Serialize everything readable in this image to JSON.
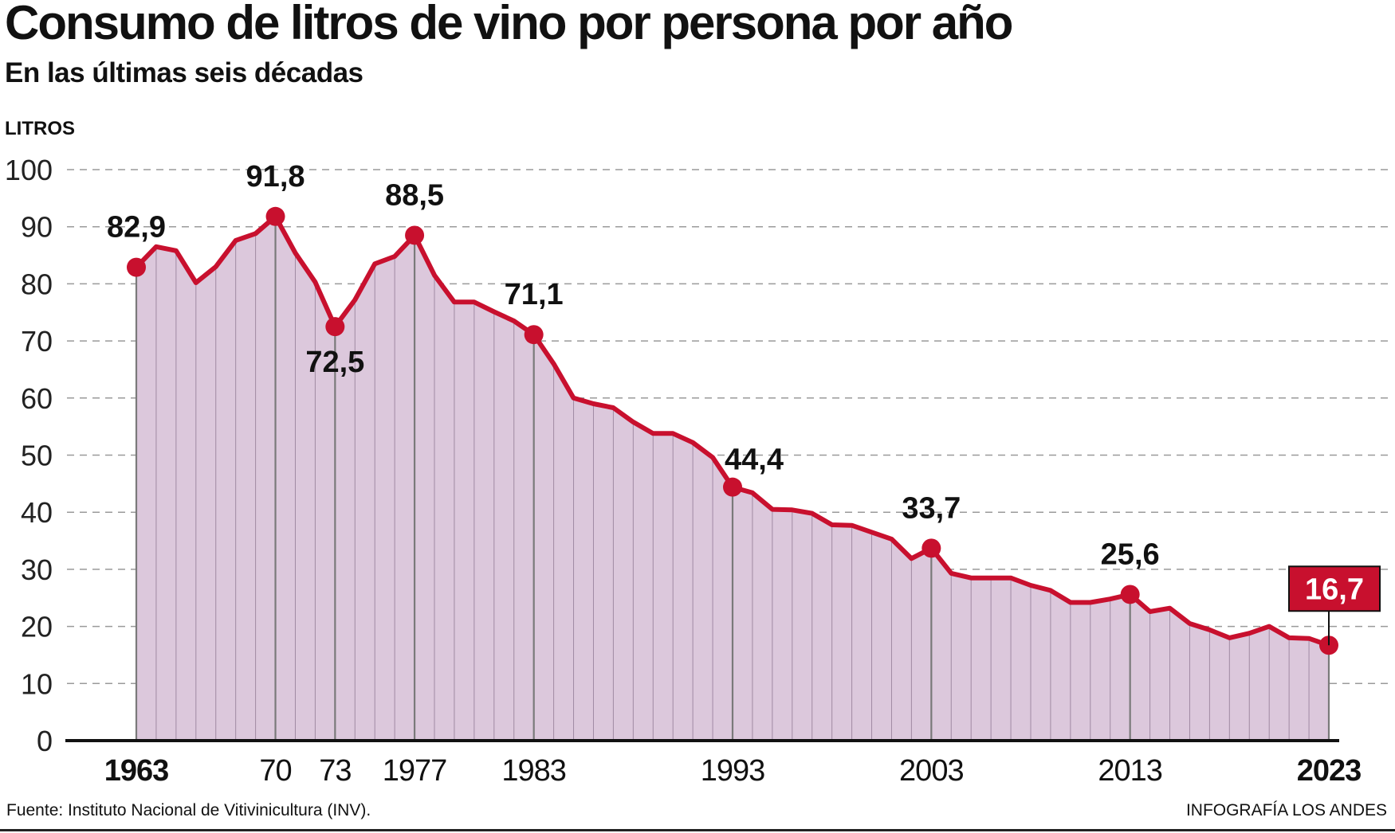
{
  "header": {
    "title": "Consumo de litros de vino por persona por año",
    "subtitle": "En las últimas seis décadas"
  },
  "footer": {
    "source": "Fuente: Instituto Nacional de Vitivinicultura (INV).",
    "credit": "INFOGRAFÍA LOS ANDES"
  },
  "colors": {
    "line": "#c8102e",
    "area": "#dcc8dc",
    "badge": "#c8102e",
    "grid": "#9a9a9a"
  },
  "chart_data": {
    "type": "area",
    "ylabel": "LITROS",
    "ylim": [
      0,
      100
    ],
    "yticks": [
      0,
      10,
      20,
      30,
      40,
      50,
      60,
      70,
      80,
      90,
      100
    ],
    "grid": true,
    "x_tick_labels": [
      {
        "year": 1963,
        "label": "1963",
        "bold": true
      },
      {
        "year": 1970,
        "label": "70",
        "bold": false
      },
      {
        "year": 1973,
        "label": "73",
        "bold": false
      },
      {
        "year": 1977,
        "label": "1977",
        "bold": false
      },
      {
        "year": 1983,
        "label": "1983",
        "bold": false
      },
      {
        "year": 1993,
        "label": "1993",
        "bold": false
      },
      {
        "year": 2003,
        "label": "2003",
        "bold": false
      },
      {
        "year": 2013,
        "label": "2013",
        "bold": false
      },
      {
        "year": 2023,
        "label": "2023",
        "bold": true
      }
    ],
    "x": [
      1963,
      1964,
      1965,
      1966,
      1967,
      1968,
      1969,
      1970,
      1971,
      1972,
      1973,
      1974,
      1975,
      1976,
      1977,
      1978,
      1979,
      1980,
      1981,
      1982,
      1983,
      1984,
      1985,
      1986,
      1987,
      1988,
      1989,
      1990,
      1991,
      1992,
      1993,
      1994,
      1995,
      1996,
      1997,
      1998,
      1999,
      2000,
      2001,
      2002,
      2003,
      2004,
      2005,
      2006,
      2007,
      2008,
      2009,
      2010,
      2011,
      2012,
      2013,
      2014,
      2015,
      2016,
      2017,
      2018,
      2019,
      2020,
      2021,
      2022,
      2023
    ],
    "values": [
      82.9,
      86.5,
      85.8,
      80.2,
      83.0,
      87.6,
      88.8,
      91.8,
      85.4,
      80.3,
      72.5,
      77.2,
      83.5,
      84.8,
      88.5,
      81.5,
      76.8,
      76.8,
      75.1,
      73.5,
      71.1,
      66.0,
      60.0,
      59.0,
      58.3,
      55.8,
      53.8,
      53.8,
      52.2,
      49.6,
      44.4,
      43.4,
      40.5,
      40.4,
      39.8,
      37.8,
      37.7,
      36.5,
      35.3,
      31.9,
      33.7,
      29.3,
      28.5,
      28.5,
      28.5,
      27.2,
      26.3,
      24.2,
      24.2,
      24.8,
      25.6,
      22.6,
      23.2,
      20.5,
      19.4,
      18.0,
      18.8,
      20.0,
      18.0,
      17.9,
      16.7
    ],
    "highlighted_points": [
      {
        "year": 1963,
        "value": 82.9,
        "label": "82,9"
      },
      {
        "year": 1970,
        "value": 91.8,
        "label": "91,8"
      },
      {
        "year": 1973,
        "value": 72.5,
        "label": "72,5"
      },
      {
        "year": 1977,
        "value": 88.5,
        "label": "88,5"
      },
      {
        "year": 1983,
        "value": 71.1,
        "label": "71,1"
      },
      {
        "year": 1993,
        "value": 44.4,
        "label": "44,4"
      },
      {
        "year": 2003,
        "value": 33.7,
        "label": "33,7"
      },
      {
        "year": 2013,
        "value": 25.6,
        "label": "25,6"
      },
      {
        "year": 2023,
        "value": 16.7,
        "label": "16,7",
        "badge": true
      }
    ]
  }
}
